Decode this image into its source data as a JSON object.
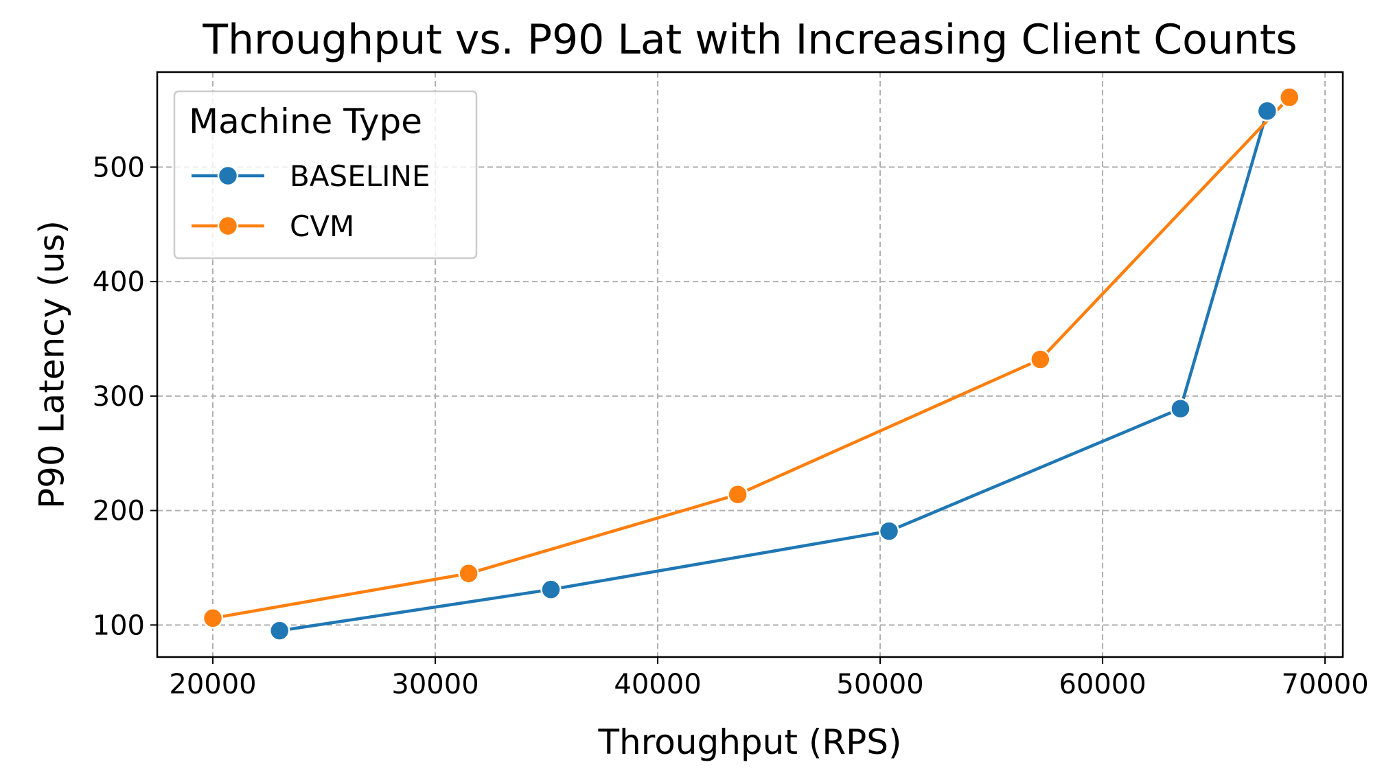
{
  "chart_data": {
    "type": "line",
    "title": "Throughput vs. P90 Lat with Increasing Client Counts",
    "xlabel": "Throughput (RPS)",
    "ylabel": "P90 Latency (us)",
    "xlim": [
      17500,
      70800
    ],
    "ylim": [
      72,
      583
    ],
    "xticks": [
      20000,
      30000,
      40000,
      50000,
      60000,
      70000
    ],
    "yticks": [
      100,
      200,
      300,
      400,
      500
    ],
    "grid": true,
    "legend": {
      "title": "Machine Type",
      "placement": "top-left"
    },
    "series": [
      {
        "name": "BASELINE",
        "color": "#1f77b4",
        "points": [
          {
            "x": 23000,
            "y": 95
          },
          {
            "x": 35200,
            "y": 131
          },
          {
            "x": 50400,
            "y": 182
          },
          {
            "x": 63500,
            "y": 289
          },
          {
            "x": 67400,
            "y": 549
          }
        ]
      },
      {
        "name": "CVM",
        "color": "#ff7f0e",
        "points": [
          {
            "x": 20000,
            "y": 106
          },
          {
            "x": 31500,
            "y": 145
          },
          {
            "x": 43600,
            "y": 214
          },
          {
            "x": 57200,
            "y": 332
          },
          {
            "x": 68400,
            "y": 561
          }
        ]
      }
    ]
  }
}
